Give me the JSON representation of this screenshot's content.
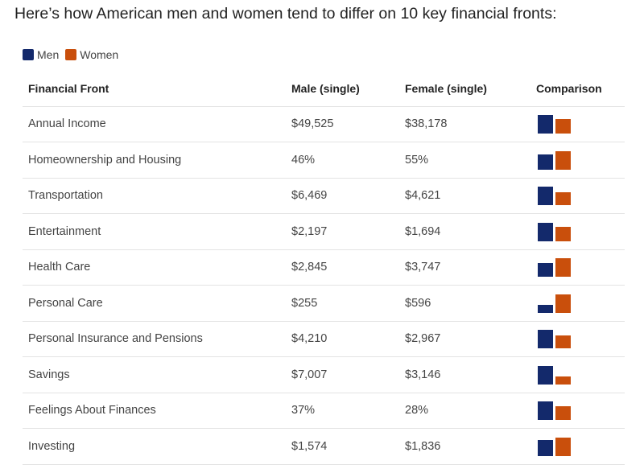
{
  "title": "Here’s how American men and women tend to differ on 10 key financial fronts:",
  "legend": [
    {
      "label": "Men",
      "color": "#13296b"
    },
    {
      "label": "Women",
      "color": "#c94f0c"
    }
  ],
  "table": {
    "headers": [
      "Financial Front",
      "Male (single)",
      "Female (single)",
      "Comparison"
    ]
  },
  "chart_data": {
    "type": "table",
    "series": [
      {
        "name": "Men",
        "color": "#13296b"
      },
      {
        "name": "Women",
        "color": "#c94f0c"
      }
    ],
    "rows": [
      {
        "front": "Annual Income",
        "male": "$49,525",
        "female": "$38,178",
        "male_value": 49525,
        "female_value": 38178
      },
      {
        "front": "Homeownership and Housing",
        "male": "46%",
        "female": "55%",
        "male_value": 46,
        "female_value": 55
      },
      {
        "front": "Transportation",
        "male": "$6,469",
        "female": "$4,621",
        "male_value": 6469,
        "female_value": 4621
      },
      {
        "front": "Entertainment",
        "male": "$2,197",
        "female": "$1,694",
        "male_value": 2197,
        "female_value": 1694
      },
      {
        "front": "Health Care",
        "male": "$2,845",
        "female": "$3,747",
        "male_value": 2845,
        "female_value": 3747
      },
      {
        "front": "Personal Care",
        "male": "$255",
        "female": "$596",
        "male_value": 255,
        "female_value": 596
      },
      {
        "front": "Personal Insurance and Pensions",
        "male": "$4,210",
        "female": "$2,967",
        "male_value": 4210,
        "female_value": 2967
      },
      {
        "front": "Savings",
        "male": "$7,007",
        "female": "$3,146",
        "male_value": 7007,
        "female_value": 3146
      },
      {
        "front": "Feelings About Finances",
        "male": "37%",
        "female": "28%",
        "male_value": 37,
        "female_value": 28
      },
      {
        "front": "Investing",
        "male": "$1,574",
        "female": "$1,836",
        "male_value": 1574,
        "female_value": 1836
      }
    ]
  }
}
